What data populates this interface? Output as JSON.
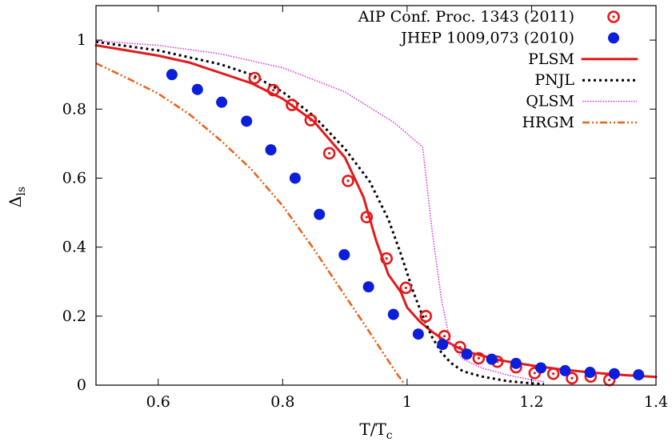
{
  "chart_data": {
    "type": "line",
    "xlabel": {
      "main": "T/T",
      "sub": "c"
    },
    "ylabel": {
      "main": "Δ",
      "sub": "ls"
    },
    "xlim": [
      0.5,
      1.4
    ],
    "ylim": [
      0,
      1.1
    ],
    "xticks": [
      0.6,
      0.8,
      1.0,
      1.2,
      1.4
    ],
    "xtick_labels": [
      "0.6",
      "0.8",
      "1",
      "1.2",
      "1.4"
    ],
    "yticks": [
      0,
      0.2,
      0.4,
      0.6,
      0.8,
      1.0
    ],
    "ytick_labels": [
      "0",
      "0.2",
      "0.4",
      "0.6",
      "0.8",
      "1"
    ],
    "legend_position": "top-right",
    "grid": false,
    "series": [
      {
        "name": "AIP Conf. Proc. 1343 (2011)",
        "kind": "scatter",
        "marker": "ring",
        "color": "#e31a1c",
        "points": [
          [
            0.755,
            0.89
          ],
          [
            0.785,
            0.855
          ],
          [
            0.815,
            0.812
          ],
          [
            0.845,
            0.768
          ],
          [
            0.875,
            0.672
          ],
          [
            0.905,
            0.592
          ],
          [
            0.935,
            0.487
          ],
          [
            0.967,
            0.367
          ],
          [
            0.998,
            0.282
          ],
          [
            1.03,
            0.2
          ],
          [
            1.06,
            0.142
          ],
          [
            1.085,
            0.11
          ],
          [
            1.115,
            0.078
          ],
          [
            1.145,
            0.068
          ],
          [
            1.175,
            0.052
          ],
          [
            1.205,
            0.035
          ],
          [
            1.235,
            0.033
          ],
          [
            1.265,
            0.02
          ],
          [
            1.295,
            0.025
          ],
          [
            1.325,
            0.015
          ]
        ]
      },
      {
        "name": "JHEP 1009,073 (2010)",
        "kind": "scatter",
        "marker": "dot",
        "color": "#0a1edc",
        "points": [
          [
            0.622,
            0.9
          ],
          [
            0.663,
            0.857
          ],
          [
            0.702,
            0.82
          ],
          [
            0.742,
            0.765
          ],
          [
            0.781,
            0.682
          ],
          [
            0.82,
            0.6
          ],
          [
            0.859,
            0.495
          ],
          [
            0.899,
            0.378
          ],
          [
            0.938,
            0.285
          ],
          [
            0.978,
            0.205
          ],
          [
            1.018,
            0.148
          ],
          [
            1.057,
            0.118
          ],
          [
            1.096,
            0.09
          ],
          [
            1.136,
            0.075
          ],
          [
            1.175,
            0.063
          ],
          [
            1.215,
            0.05
          ],
          [
            1.254,
            0.042
          ],
          [
            1.294,
            0.037
          ],
          [
            1.333,
            0.033
          ],
          [
            1.372,
            0.03
          ]
        ]
      },
      {
        "name": "PLSM",
        "kind": "line",
        "style": "solid",
        "color": "#e31a1c",
        "points": [
          [
            0.5,
            0.985
          ],
          [
            0.55,
            0.97
          ],
          [
            0.6,
            0.955
          ],
          [
            0.65,
            0.935
          ],
          [
            0.7,
            0.905
          ],
          [
            0.75,
            0.875
          ],
          [
            0.8,
            0.83
          ],
          [
            0.85,
            0.765
          ],
          [
            0.9,
            0.66
          ],
          [
            0.93,
            0.545
          ],
          [
            0.95,
            0.42
          ],
          [
            0.97,
            0.32
          ],
          [
            0.99,
            0.27
          ],
          [
            1.0,
            0.225
          ],
          [
            1.02,
            0.185
          ],
          [
            1.04,
            0.155
          ],
          [
            1.06,
            0.13
          ],
          [
            1.08,
            0.11
          ],
          [
            1.1,
            0.095
          ],
          [
            1.15,
            0.072
          ],
          [
            1.2,
            0.057
          ],
          [
            1.25,
            0.045
          ],
          [
            1.3,
            0.036
          ],
          [
            1.35,
            0.029
          ],
          [
            1.4,
            0.024
          ]
        ]
      },
      {
        "name": "PNJL",
        "kind": "line",
        "style": "dotted",
        "color": "#000000",
        "points": [
          [
            0.5,
            0.995
          ],
          [
            0.6,
            0.97
          ],
          [
            0.7,
            0.93
          ],
          [
            0.75,
            0.9
          ],
          [
            0.8,
            0.85
          ],
          [
            0.85,
            0.78
          ],
          [
            0.9,
            0.685
          ],
          [
            0.94,
            0.59
          ],
          [
            0.97,
            0.48
          ],
          [
            0.99,
            0.38
          ],
          [
            1.01,
            0.27
          ],
          [
            1.025,
            0.2
          ],
          [
            1.04,
            0.14
          ],
          [
            1.055,
            0.095
          ],
          [
            1.07,
            0.065
          ],
          [
            1.09,
            0.04
          ],
          [
            1.12,
            0.025
          ],
          [
            1.16,
            0.012
          ],
          [
            1.2,
            0.005
          ],
          [
            1.22,
            0.003
          ]
        ]
      },
      {
        "name": "QLSM",
        "kind": "line",
        "style": "dotted-fine",
        "color": "#e040e0",
        "points": [
          [
            0.5,
            0.998
          ],
          [
            0.6,
            0.985
          ],
          [
            0.7,
            0.96
          ],
          [
            0.8,
            0.92
          ],
          [
            0.9,
            0.85
          ],
          [
            0.98,
            0.76
          ],
          [
            1.025,
            0.69
          ],
          [
            1.04,
            0.45
          ],
          [
            1.055,
            0.25
          ],
          [
            1.07,
            0.12
          ],
          [
            1.09,
            0.075
          ],
          [
            1.12,
            0.05
          ],
          [
            1.16,
            0.03
          ],
          [
            1.2,
            0.015
          ],
          [
            1.22,
            0.01
          ]
        ]
      },
      {
        "name": "HRGM",
        "kind": "line",
        "style": "dash-dot",
        "color": "#e8641e",
        "points": [
          [
            0.5,
            0.933
          ],
          [
            0.55,
            0.89
          ],
          [
            0.6,
            0.845
          ],
          [
            0.65,
            0.785
          ],
          [
            0.7,
            0.71
          ],
          [
            0.75,
            0.625
          ],
          [
            0.8,
            0.52
          ],
          [
            0.85,
            0.395
          ],
          [
            0.9,
            0.26
          ],
          [
            0.93,
            0.18
          ],
          [
            0.95,
            0.125
          ],
          [
            0.97,
            0.07
          ],
          [
            0.985,
            0.03
          ],
          [
            0.995,
            0.005
          ]
        ]
      }
    ]
  }
}
